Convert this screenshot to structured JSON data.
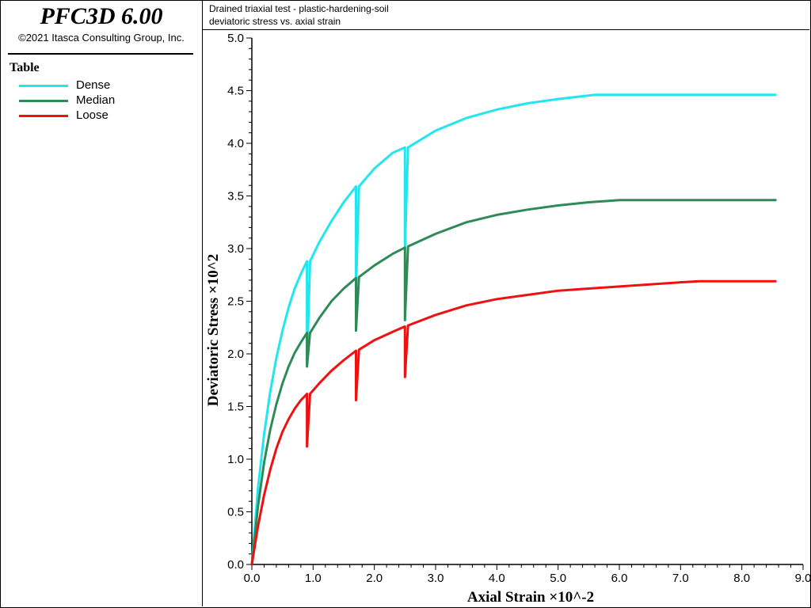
{
  "app": {
    "title": "PFC3D 6.00",
    "copyright": "©2021 Itasca Consulting Group, Inc."
  },
  "legend": {
    "title": "Table",
    "items": [
      {
        "label": "Dense",
        "color": "#22e6ee"
      },
      {
        "label": "Median",
        "color": "#2e8b57"
      },
      {
        "label": "Loose",
        "color": "#ee1111"
      }
    ]
  },
  "header": {
    "line1": "Drained triaxial test - plastic-hardening-soil",
    "line2": "deviatoric stress vs. axial strain"
  },
  "chart_data": {
    "type": "line",
    "title": "Drained triaxial test - plastic-hardening-soil",
    "subtitle": "deviatoric stress vs. axial strain",
    "xlabel": "Axial Strain ×10^-2",
    "ylabel": "Deviatoric Stress ×10^2",
    "xlim": [
      0,
      9
    ],
    "ylim": [
      0,
      5
    ],
    "xticks": [
      "0.0",
      "1.0",
      "2.0",
      "3.0",
      "4.0",
      "5.0",
      "6.0",
      "7.0",
      "8.0",
      "9.0"
    ],
    "yticks": [
      "0.0",
      "0.5",
      "1.0",
      "1.5",
      "2.0",
      "2.5",
      "3.0",
      "3.5",
      "4.0",
      "4.5",
      "5.0"
    ],
    "grid": false,
    "legend_position": "left-panel",
    "series": [
      {
        "name": "Dense",
        "color": "#22e6ee",
        "points": [
          [
            0,
            0
          ],
          [
            0.1,
            0.72
          ],
          [
            0.2,
            1.24
          ],
          [
            0.3,
            1.64
          ],
          [
            0.4,
            1.96
          ],
          [
            0.5,
            2.22
          ],
          [
            0.6,
            2.44
          ],
          [
            0.7,
            2.62
          ],
          [
            0.8,
            2.76
          ],
          [
            0.9,
            2.88
          ],
          [
            0.9,
            1.9
          ],
          [
            0.95,
            2.88
          ],
          [
            1.1,
            3.06
          ],
          [
            1.3,
            3.26
          ],
          [
            1.5,
            3.44
          ],
          [
            1.7,
            3.59
          ],
          [
            1.7,
            2.62
          ],
          [
            1.75,
            3.59
          ],
          [
            2.0,
            3.76
          ],
          [
            2.3,
            3.91
          ],
          [
            2.5,
            3.96
          ],
          [
            2.5,
            3.0
          ],
          [
            2.55,
            3.96
          ],
          [
            3.0,
            4.12
          ],
          [
            3.5,
            4.24
          ],
          [
            4.0,
            4.32
          ],
          [
            4.5,
            4.38
          ],
          [
            5.0,
            4.42
          ],
          [
            5.6,
            4.46
          ],
          [
            8.55,
            4.46
          ]
        ]
      },
      {
        "name": "Median",
        "color": "#2e8b57",
        "points": [
          [
            0,
            0
          ],
          [
            0.1,
            0.55
          ],
          [
            0.2,
            0.97
          ],
          [
            0.3,
            1.28
          ],
          [
            0.4,
            1.52
          ],
          [
            0.5,
            1.72
          ],
          [
            0.6,
            1.88
          ],
          [
            0.7,
            2.01
          ],
          [
            0.8,
            2.11
          ],
          [
            0.9,
            2.2
          ],
          [
            0.9,
            1.88
          ],
          [
            0.95,
            2.2
          ],
          [
            1.1,
            2.34
          ],
          [
            1.3,
            2.5
          ],
          [
            1.5,
            2.62
          ],
          [
            1.7,
            2.72
          ],
          [
            1.7,
            2.22
          ],
          [
            1.75,
            2.73
          ],
          [
            2.0,
            2.84
          ],
          [
            2.3,
            2.95
          ],
          [
            2.5,
            3.01
          ],
          [
            2.5,
            2.32
          ],
          [
            2.55,
            3.02
          ],
          [
            3.0,
            3.14
          ],
          [
            3.5,
            3.25
          ],
          [
            4.0,
            3.32
          ],
          [
            4.5,
            3.37
          ],
          [
            5.0,
            3.41
          ],
          [
            5.5,
            3.44
          ],
          [
            6.0,
            3.46
          ],
          [
            8.55,
            3.46
          ]
        ]
      },
      {
        "name": "Loose",
        "color": "#ee1111",
        "points": [
          [
            0,
            0
          ],
          [
            0.1,
            0.36
          ],
          [
            0.2,
            0.66
          ],
          [
            0.3,
            0.9
          ],
          [
            0.4,
            1.1
          ],
          [
            0.5,
            1.26
          ],
          [
            0.6,
            1.38
          ],
          [
            0.7,
            1.48
          ],
          [
            0.8,
            1.56
          ],
          [
            0.9,
            1.62
          ],
          [
            0.9,
            1.12
          ],
          [
            0.95,
            1.62
          ],
          [
            1.1,
            1.72
          ],
          [
            1.3,
            1.84
          ],
          [
            1.5,
            1.94
          ],
          [
            1.7,
            2.03
          ],
          [
            1.7,
            1.56
          ],
          [
            1.75,
            2.04
          ],
          [
            2.0,
            2.13
          ],
          [
            2.3,
            2.21
          ],
          [
            2.5,
            2.26
          ],
          [
            2.5,
            1.78
          ],
          [
            2.55,
            2.27
          ],
          [
            3.0,
            2.37
          ],
          [
            3.5,
            2.46
          ],
          [
            4.0,
            2.52
          ],
          [
            4.5,
            2.56
          ],
          [
            5.0,
            2.6
          ],
          [
            5.5,
            2.62
          ],
          [
            6.0,
            2.64
          ],
          [
            6.5,
            2.66
          ],
          [
            7.0,
            2.68
          ],
          [
            7.3,
            2.69
          ],
          [
            8.55,
            2.69
          ]
        ]
      }
    ]
  }
}
